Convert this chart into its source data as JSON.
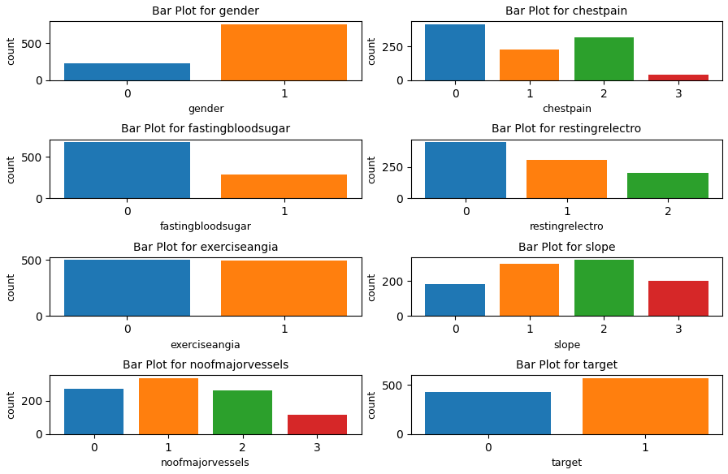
{
  "plots": [
    {
      "title": "Bar Plot for gender",
      "xlabel": "gender",
      "categories": [
        0,
        1
      ],
      "values": [
        234,
        760
      ],
      "colors": [
        "#1f77b4",
        "#ff7f0e"
      ]
    },
    {
      "title": "Bar Plot for chestpain",
      "xlabel": "chestpain",
      "categories": [
        0,
        1,
        2,
        3
      ],
      "values": [
        415,
        225,
        315,
        40
      ],
      "colors": [
        "#1f77b4",
        "#ff7f0e",
        "#2ca02c",
        "#d62728"
      ]
    },
    {
      "title": "Bar Plot for fastingbloodsugar",
      "xlabel": "fastingbloodsugar",
      "categories": [
        0,
        1
      ],
      "values": [
        680,
        290
      ],
      "colors": [
        "#1f77b4",
        "#ff7f0e"
      ]
    },
    {
      "title": "Bar Plot for restingrelectro",
      "xlabel": "restingrelectro",
      "categories": [
        0,
        1,
        2
      ],
      "values": [
        450,
        305,
        200
      ],
      "colors": [
        "#1f77b4",
        "#ff7f0e",
        "#2ca02c"
      ]
    },
    {
      "title": "Bar Plot for exerciseangia",
      "xlabel": "exerciseangia",
      "categories": [
        0,
        1
      ],
      "values": [
        500,
        495
      ],
      "colors": [
        "#1f77b4",
        "#ff7f0e"
      ]
    },
    {
      "title": "Bar Plot for slope",
      "xlabel": "slope",
      "categories": [
        0,
        1,
        2,
        3
      ],
      "values": [
        185,
        300,
        320,
        202
      ],
      "colors": [
        "#1f77b4",
        "#ff7f0e",
        "#2ca02c",
        "#d62728"
      ]
    },
    {
      "title": "Bar Plot for noofmajorvessels",
      "xlabel": "noofmajorvessels",
      "categories": [
        0,
        1,
        2,
        3
      ],
      "values": [
        275,
        338,
        265,
        115
      ],
      "colors": [
        "#1f77b4",
        "#ff7f0e",
        "#2ca02c",
        "#d62728"
      ]
    },
    {
      "title": "Bar Plot for target",
      "xlabel": "target",
      "categories": [
        0,
        1
      ],
      "values": [
        430,
        570
      ],
      "colors": [
        "#1f77b4",
        "#ff7f0e"
      ]
    }
  ],
  "ylabel": "count",
  "figsize": [
    8.96,
    5.84
  ],
  "dpi": 100
}
